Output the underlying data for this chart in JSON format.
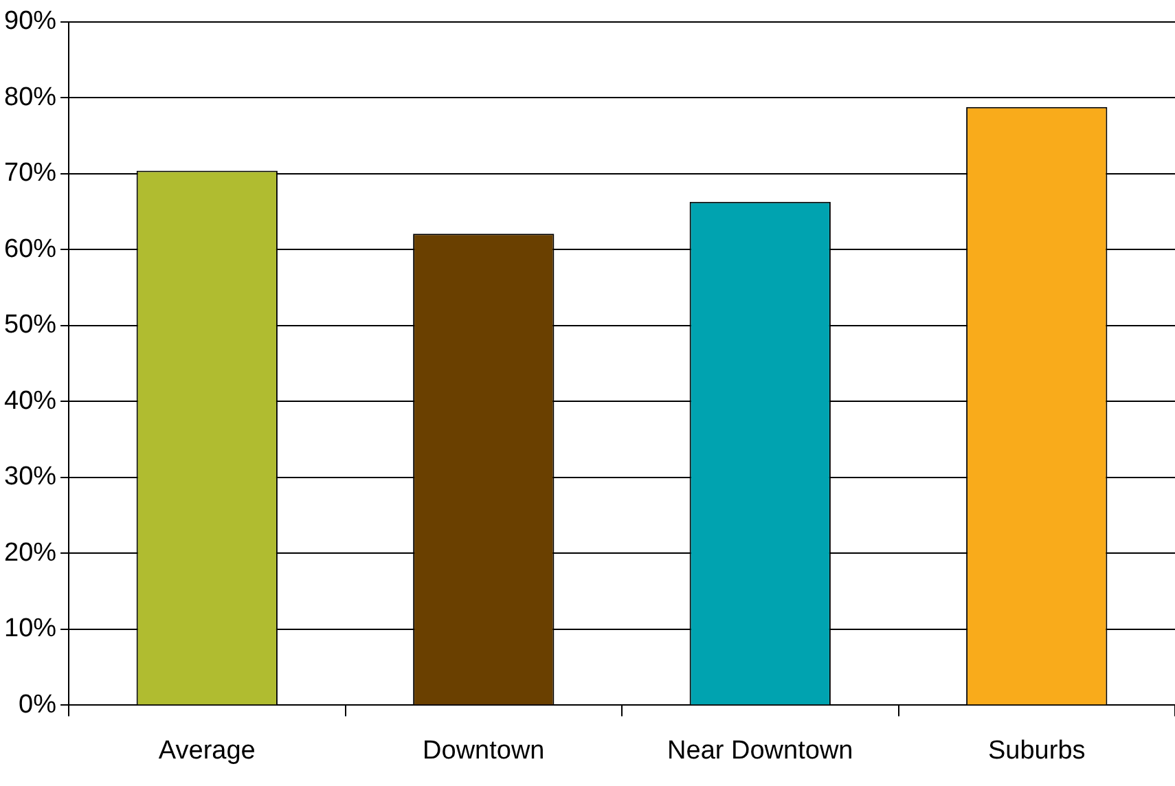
{
  "chart_data": {
    "type": "bar",
    "categories": [
      "Average",
      "Downtown",
      "Near Downtown",
      "Suburbs"
    ],
    "values": [
      70.4,
      62.1,
      66.3,
      78.8
    ],
    "colors": [
      "#b0bc30",
      "#6a4000",
      "#00a3b0",
      "#f9ab1b"
    ],
    "ylim": [
      0,
      90
    ],
    "yticks": [
      {
        "value": 0,
        "label": "0%"
      },
      {
        "value": 10,
        "label": "10%"
      },
      {
        "value": 20,
        "label": "20%"
      },
      {
        "value": 30,
        "label": "30%"
      },
      {
        "value": 40,
        "label": "40%"
      },
      {
        "value": 50,
        "label": "50%"
      },
      {
        "value": 60,
        "label": "60%"
      },
      {
        "value": 70,
        "label": "70%"
      },
      {
        "value": 80,
        "label": "80%"
      },
      {
        "value": 90,
        "label": "90%"
      }
    ],
    "grid": "y",
    "legend": false
  }
}
